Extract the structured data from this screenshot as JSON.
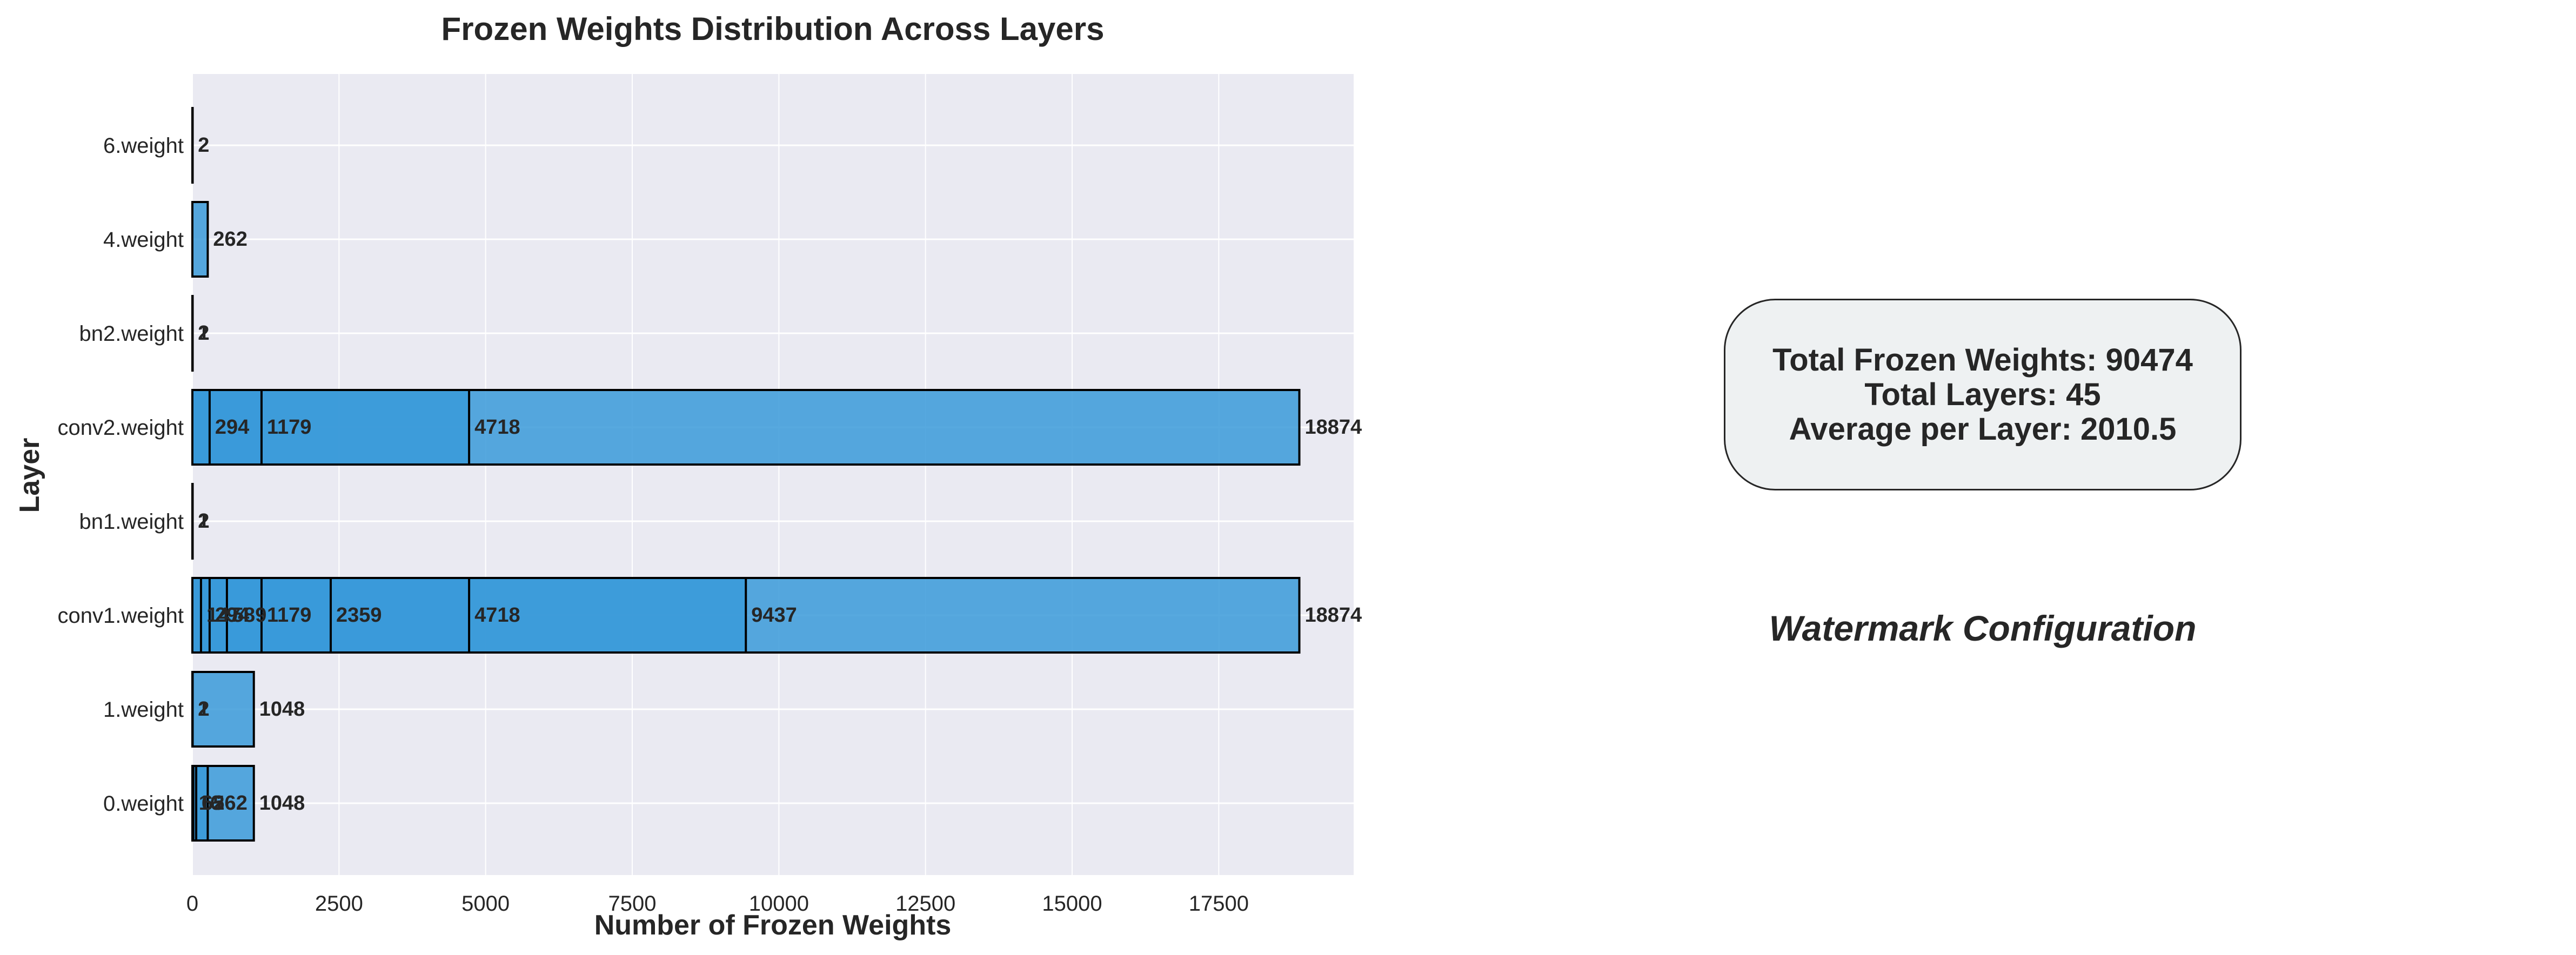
{
  "chart_data": {
    "type": "bar",
    "orientation": "horizontal",
    "stacked_overlay": true,
    "title": "Frozen Weights Distribution Across Layers",
    "xlabel": "Number of Frozen Weights",
    "ylabel": "Layer",
    "xlim": [
      0,
      19800
    ],
    "xticks": [
      0,
      2500,
      5000,
      7500,
      10000,
      12500,
      15000,
      17500
    ],
    "grid": true,
    "bar_color": "#3a9ad9",
    "categories": [
      "0.weight",
      "1.weight",
      "conv1.weight",
      "bn1.weight",
      "conv2.weight",
      "bn2.weight",
      "4.weight",
      "6.weight"
    ],
    "bars": [
      {
        "layer": "0.weight",
        "values": [
          16,
          65,
          262,
          1048
        ]
      },
      {
        "layer": "1.weight",
        "values": [
          1,
          2,
          1048
        ]
      },
      {
        "layer": "conv1.weight",
        "values": [
          147,
          294,
          589,
          1179,
          2359,
          4718,
          9437,
          18874
        ]
      },
      {
        "layer": "bn1.weight",
        "values": [
          1,
          2
        ]
      },
      {
        "layer": "conv2.weight",
        "values": [
          294,
          1179,
          4718,
          18874
        ]
      },
      {
        "layer": "bn2.weight",
        "values": [
          1,
          2
        ]
      },
      {
        "layer": "4.weight",
        "values": [
          262
        ]
      },
      {
        "layer": "6.weight",
        "values": [
          2
        ]
      }
    ]
  },
  "summary": {
    "total_line": "Total Frozen Weights: 90474",
    "layers_line": "Total Layers: 45",
    "average_line": "Average per Layer: 2010.5"
  },
  "watermark_title": "Watermark Configuration",
  "colors": {
    "plot_background": "#eaeaf2",
    "grid": "#ffffff",
    "summary_box_fill": "#eef1f2"
  }
}
